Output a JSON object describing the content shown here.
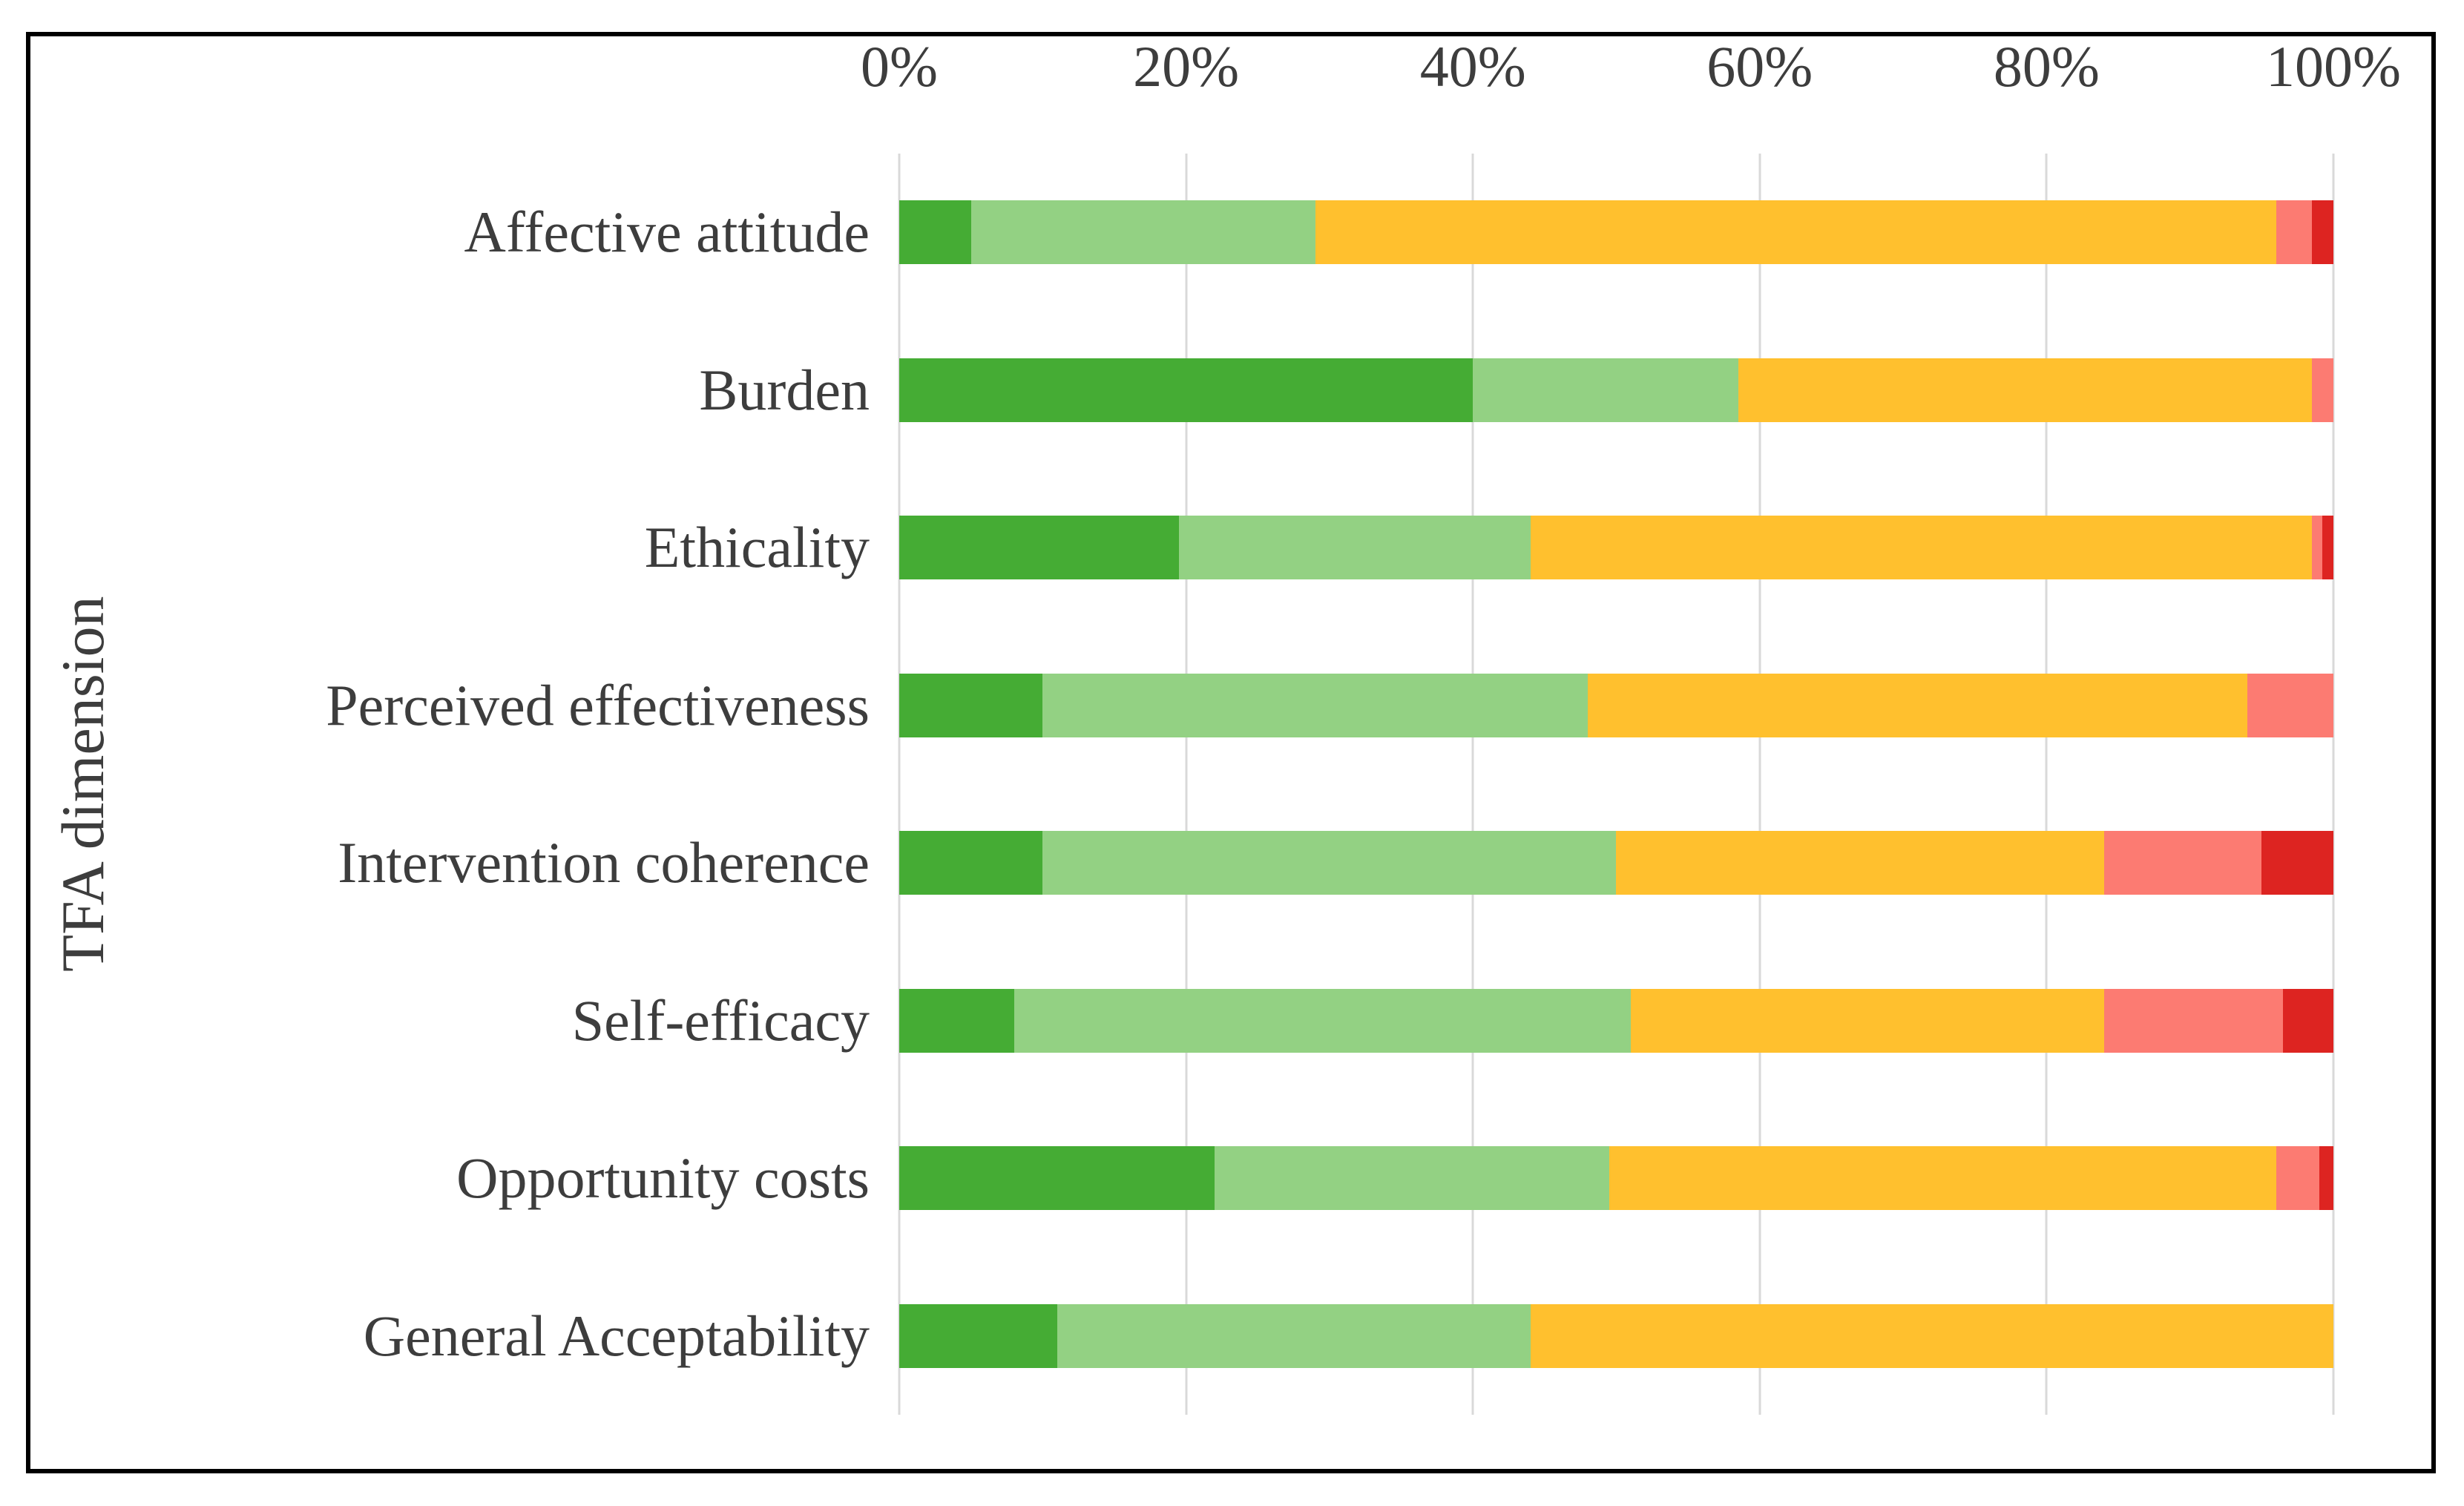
{
  "figure": {
    "background_color": "#ffffff",
    "border_color": "#000000"
  },
  "styles": {
    "text_color": "#3d3d3d",
    "gridline_color": "#d9d9d9"
  },
  "chart_data": {
    "type": "bar",
    "orientation": "horizontal",
    "stacked": true,
    "title": "",
    "xlabel": "",
    "ylabel": "TFA dimension",
    "xlim": [
      0,
      100
    ],
    "x_tick_labels": [
      "0%",
      "20%",
      "40%",
      "60%",
      "80%",
      "100%"
    ],
    "grid": "vertical-only",
    "legend": "none",
    "categories": [
      "Affective attitude",
      "Burden",
      "Ethicality",
      "Perceived effectiveness",
      "Intervention coherence",
      "Self-efficacy",
      "Opportunity costs",
      "General Acceptability"
    ],
    "series": [
      {
        "name": "dark-green-segment",
        "color": "#45AC34",
        "values": [
          5,
          40,
          19.5,
          10,
          10,
          8,
          22,
          11
        ]
      },
      {
        "name": "light-green-segment",
        "color": "#93D183",
        "values": [
          24,
          18.5,
          24.5,
          38,
          40,
          43,
          27.5,
          33
        ]
      },
      {
        "name": "amber-segment",
        "color": "#FFC02E",
        "values": [
          67,
          40,
          54.5,
          46,
          34,
          33,
          46.5,
          56
        ]
      },
      {
        "name": "salmon-segment",
        "color": "#FC7B72",
        "values": [
          2.5,
          1.5,
          0.75,
          6,
          11,
          12.5,
          3,
          0
        ]
      },
      {
        "name": "dark-red-segment",
        "color": "#DD2421",
        "values": [
          1.5,
          0,
          0.75,
          0,
          5,
          3.5,
          1,
          0
        ]
      }
    ]
  }
}
